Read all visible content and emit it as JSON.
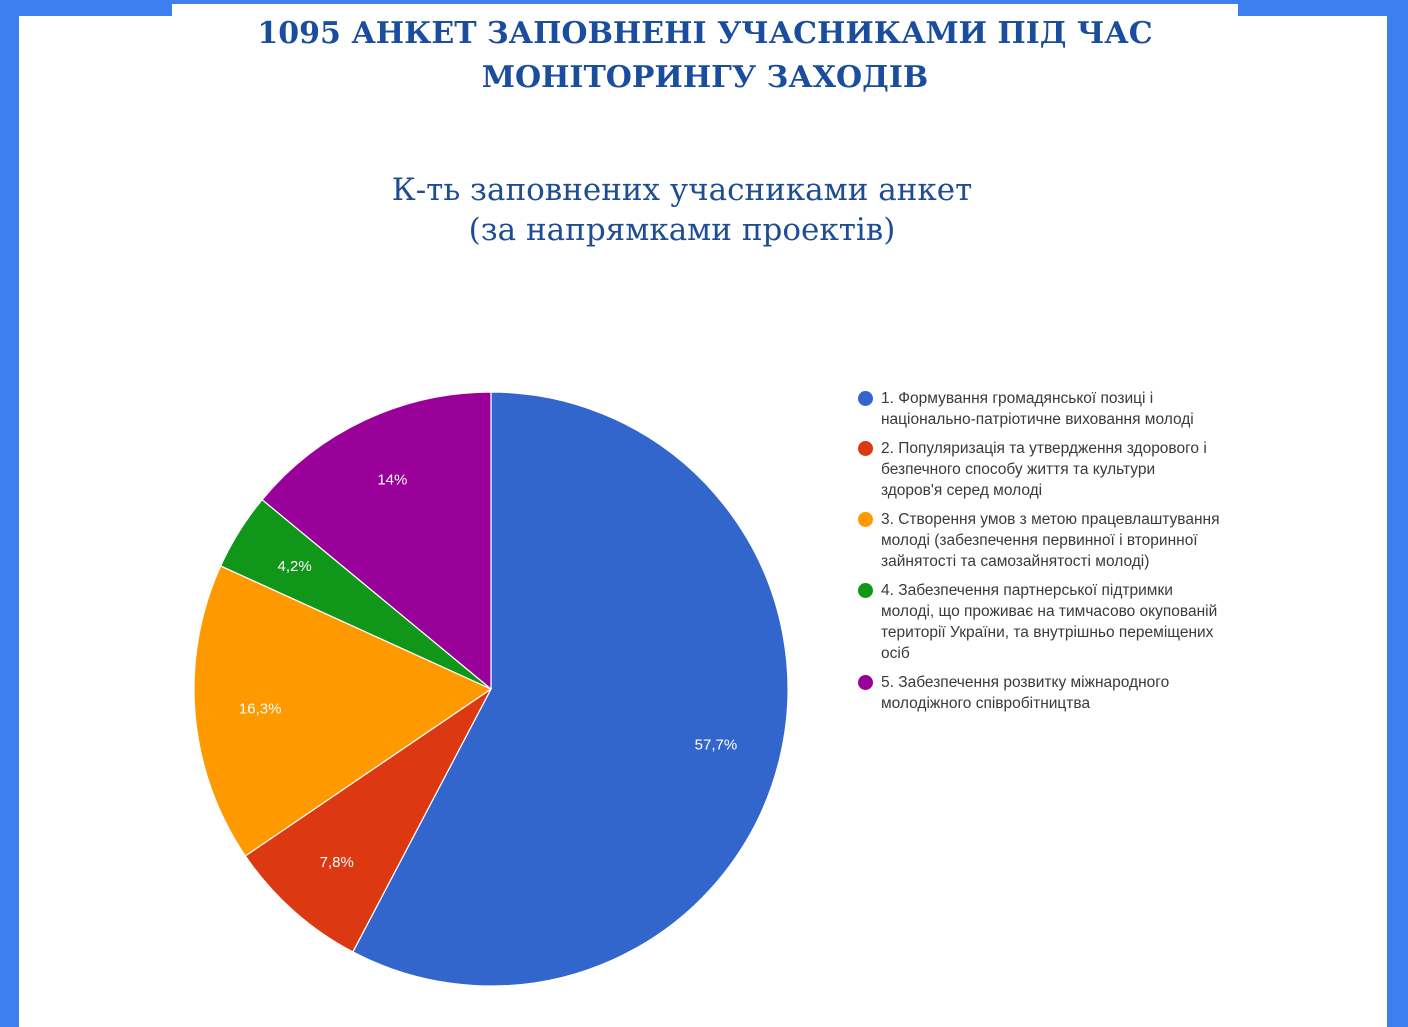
{
  "page": {
    "title_line1": "1095 АНКЕТ ЗАПОВНЕНІ УЧАСНИКАМИ ПІД ЧАС",
    "title_line2": "МОНІТОРИНГУ ЗАХОДІВ",
    "frame_color": "#3d7ff0"
  },
  "chart_data": {
    "type": "pie",
    "title_line1": "К-ть заповнених учасниками анкет",
    "title_line2": "(за напрямками проектів)",
    "legend_position": "right",
    "categories": [
      "1. Формування громадянської позиці і національно-патріотичне виховання молоді",
      "2. Популяризація та утвердження здорового і безпечного способу життя та культури здоров'я серед молоді",
      "3. Створення умов з метою працевлаштування молоді (забезпечення первинної і вторинної зайнятості та самозайнятості молоді)",
      "4. Забезпечення партнерської підтримки молоді, що проживає на тимчасово окупованій території України, та внутрішньо переміщених осіб",
      "5. Забезпечення розвитку міжнародного молодіжного співробітництва"
    ],
    "legend_lines": [
      [
        "1. Формування громадянської позиці і",
        "національно-патріотичне виховання молоді"
      ],
      [
        "2. Популяризація та утвердження здорового і",
        "безпечного способу життя та культури",
        "здоров'я серед молоді"
      ],
      [
        "3. Створення умов з метою працевлаштування",
        "молоді (забезпечення первинної і вторинної",
        "зайнятості та самозайнятості молоді)"
      ],
      [
        "4. Забезпечення партнерської підтримки",
        "молоді, що проживає на тимчасово окупованій",
        "території України, та внутрішньо переміщених",
        "осіб"
      ],
      [
        "5. Забезпечення розвитку міжнародного",
        "молодіжного співробітництва"
      ]
    ],
    "values": [
      57.7,
      7.8,
      16.3,
      4.2,
      14
    ],
    "labels": [
      "57,7%",
      "7,8%",
      "16,3%",
      "4,2%",
      "14%"
    ],
    "colors": [
      "#3366cc",
      "#dc3912",
      "#ff9900",
      "#109618",
      "#990099"
    ],
    "start": "12 o'clock",
    "direction": "clockwise"
  }
}
